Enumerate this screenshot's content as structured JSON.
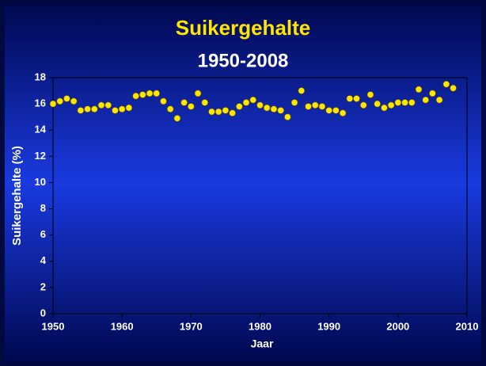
{
  "chart_data": {
    "type": "scatter",
    "title": "Suikergehalte",
    "subtitle": "1950-2008",
    "x_label": "Jaar",
    "y_label": "Suikergehalte (%)",
    "color": "#ffe600",
    "x": [
      1950,
      1951,
      1952,
      1953,
      1954,
      1955,
      1956,
      1957,
      1958,
      1959,
      1960,
      1961,
      1962,
      1963,
      1964,
      1965,
      1966,
      1967,
      1968,
      1969,
      1970,
      1971,
      1972,
      1973,
      1974,
      1975,
      1976,
      1977,
      1978,
      1979,
      1980,
      1981,
      1982,
      1983,
      1984,
      1985,
      1986,
      1987,
      1988,
      1989,
      1990,
      1991,
      1992,
      1993,
      1994,
      1995,
      1996,
      1997,
      1998,
      1999,
      2000,
      2001,
      2002,
      2003,
      2004,
      2005,
      2006,
      2007,
      2008
    ],
    "values": [
      16.0,
      16.2,
      16.4,
      16.2,
      15.5,
      15.6,
      15.6,
      15.9,
      15.9,
      15.5,
      15.6,
      15.7,
      16.6,
      16.7,
      16.8,
      16.8,
      16.2,
      15.6,
      14.9,
      16.1,
      15.8,
      16.8,
      16.1,
      15.4,
      15.4,
      15.5,
      15.3,
      15.8,
      16.1,
      16.3,
      15.9,
      15.7,
      15.6,
      15.5,
      15.0,
      16.1,
      17.0,
      15.8,
      15.9,
      15.8,
      15.5,
      15.5,
      15.3,
      16.4,
      16.4,
      15.9,
      16.7,
      16.0,
      15.7,
      15.9,
      16.1,
      16.1,
      16.1,
      17.1,
      16.3,
      16.8,
      16.3,
      17.5,
      17.2
    ],
    "xlim": [
      1950,
      2010
    ],
    "xticks": [
      1950,
      1960,
      1970,
      1980,
      1990,
      2000,
      2010
    ],
    "ylim": [
      0,
      18
    ],
    "yticks": [
      0,
      2,
      4,
      6,
      8,
      10,
      12,
      14,
      16,
      18
    ]
  }
}
